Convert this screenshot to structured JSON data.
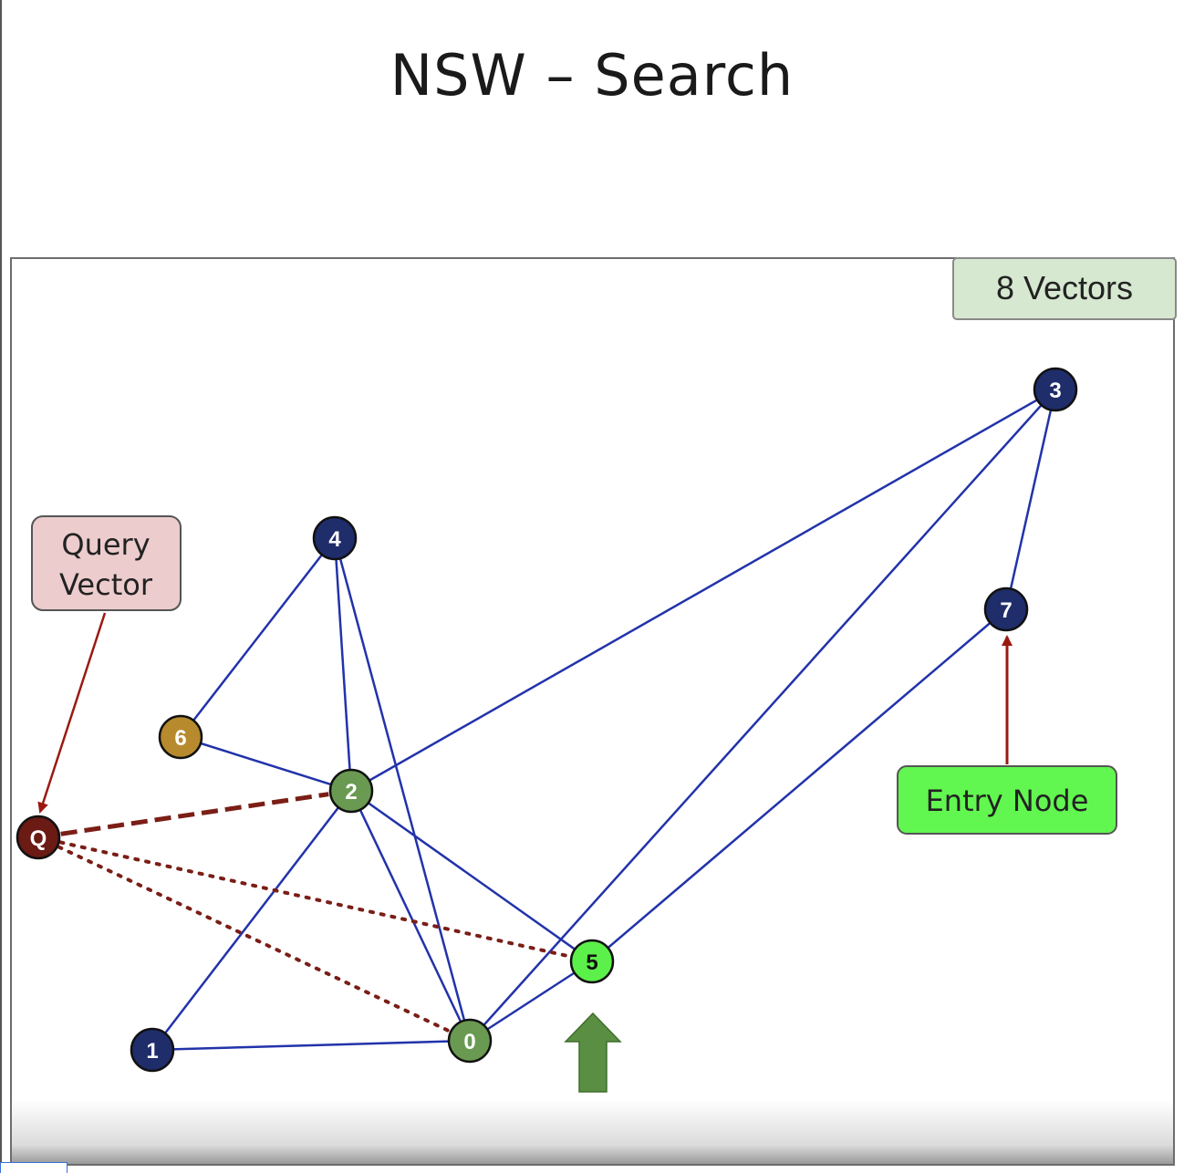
{
  "title": "NSW – Search",
  "vector_count_label": "8 Vectors",
  "callouts": {
    "query": [
      "Query",
      "Vector"
    ],
    "entry": "Entry Node"
  },
  "colors": {
    "edge": "#2233aa",
    "node_default": "#1f2d6b",
    "node_visited": "#6a9a52",
    "node_current": "#5cf04a",
    "node_highlight": "#b88a2e",
    "query_node": "#6b1a14",
    "query_edge": "#7a1e16",
    "arrow_red": "#9a1a12",
    "arrow_green": "#5a8f43",
    "query_box_fill": "#eccccd",
    "entry_box_fill": "#62f650",
    "count_box_fill": "#d6e8d0"
  },
  "nodes": [
    {
      "id": "0",
      "state": "visited"
    },
    {
      "id": "1",
      "state": "default"
    },
    {
      "id": "2",
      "state": "visited"
    },
    {
      "id": "3",
      "state": "default"
    },
    {
      "id": "4",
      "state": "default"
    },
    {
      "id": "5",
      "state": "current"
    },
    {
      "id": "6",
      "state": "highlight"
    },
    {
      "id": "7",
      "state": "default"
    },
    {
      "id": "Q",
      "state": "query"
    }
  ],
  "edges": [
    [
      "4",
      "6"
    ],
    [
      "4",
      "2"
    ],
    [
      "4",
      "0"
    ],
    [
      "6",
      "2"
    ],
    [
      "2",
      "3"
    ],
    [
      "2",
      "1"
    ],
    [
      "2",
      "0"
    ],
    [
      "2",
      "5"
    ],
    [
      "1",
      "0"
    ],
    [
      "0",
      "3"
    ],
    [
      "0",
      "5"
    ],
    [
      "3",
      "7"
    ],
    [
      "5",
      "7"
    ]
  ],
  "query_links": [
    {
      "to": "2",
      "style": "dashed"
    },
    {
      "to": "5",
      "style": "dotted"
    },
    {
      "to": "0",
      "style": "dotted"
    }
  ]
}
